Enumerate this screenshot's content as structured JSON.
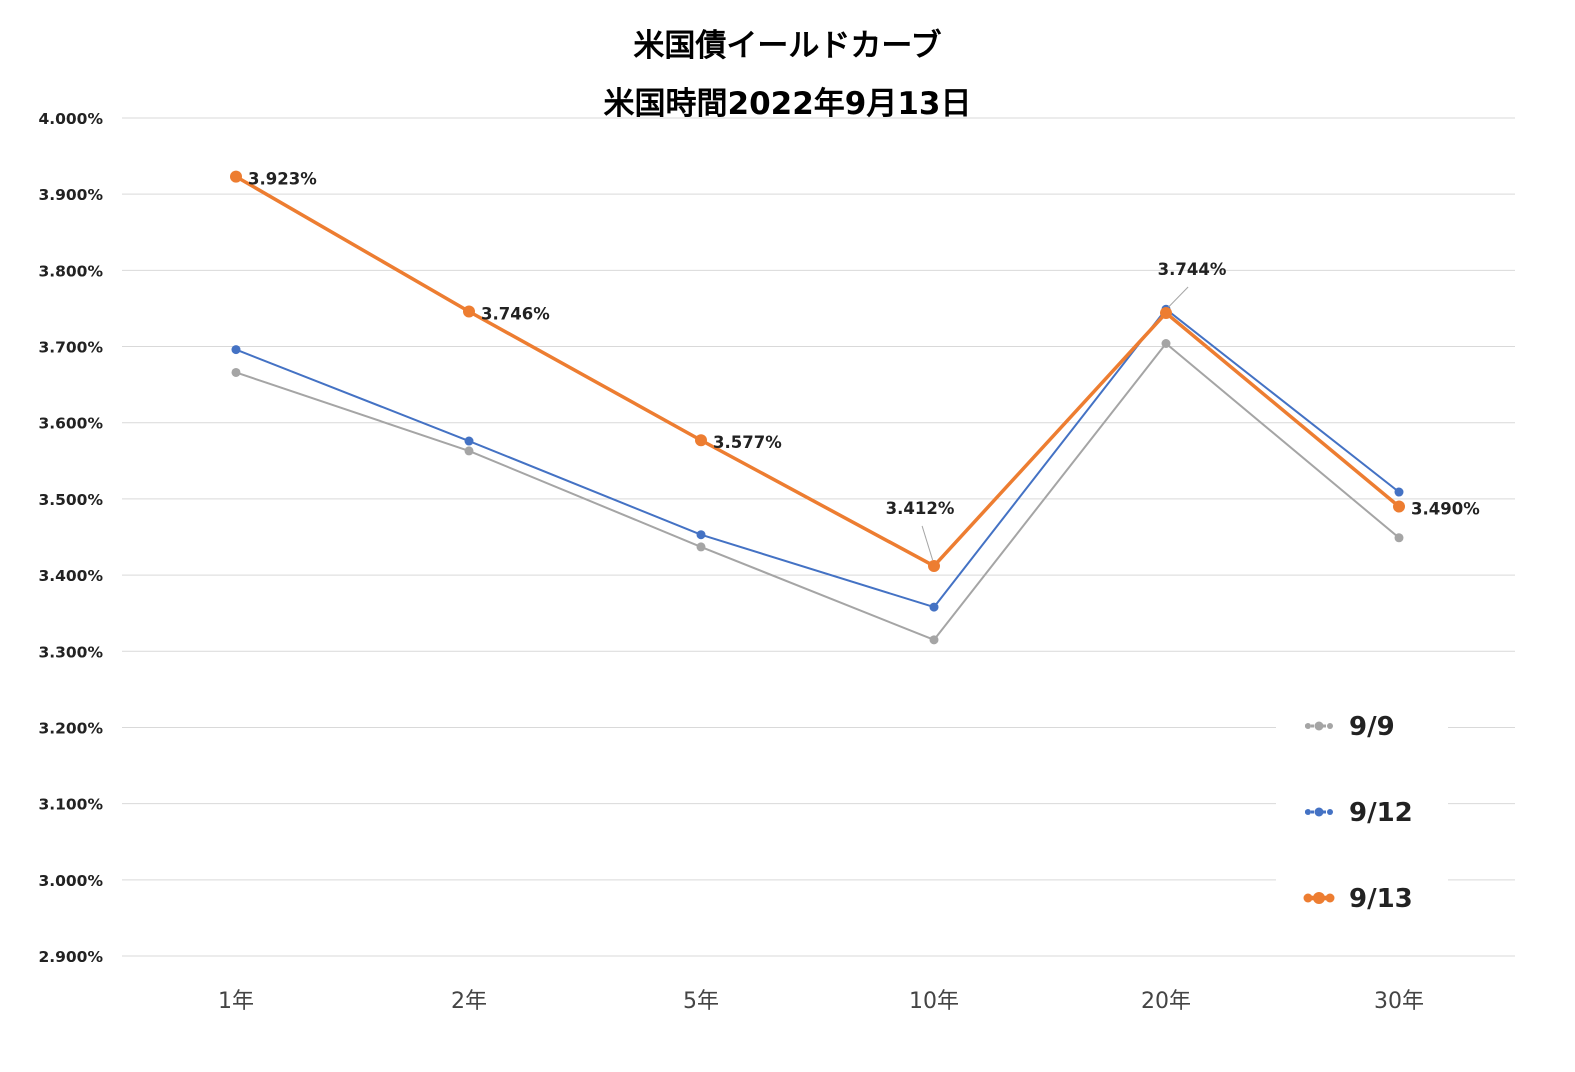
{
  "chart_data": {
    "type": "line",
    "title": "米国債イールドカーブ",
    "subtitle": "米国時間2022年9月13日",
    "categories": [
      "1年",
      "2年",
      "5年",
      "10年",
      "20年",
      "30年"
    ],
    "ylim": [
      2.9,
      4.0
    ],
    "yticks": [
      4.0,
      3.9,
      3.8,
      3.7,
      3.6,
      3.5,
      3.4,
      3.3,
      3.2,
      3.1,
      3.0,
      2.9
    ],
    "ytick_labels": [
      "4.000%",
      "3.900%",
      "3.800%",
      "3.700%",
      "3.600%",
      "3.500%",
      "3.400%",
      "3.300%",
      "3.200%",
      "3.100%",
      "3.000%",
      "2.900%"
    ],
    "grid": true,
    "legend_position": "bottom-right",
    "series": [
      {
        "name": "9/9",
        "color": "#a5a5a5",
        "values": [
          3.666,
          3.563,
          3.437,
          3.315,
          3.704,
          3.449
        ]
      },
      {
        "name": "9/12",
        "color": "#4472c4",
        "values": [
          3.696,
          3.576,
          3.453,
          3.358,
          3.749,
          3.509
        ]
      },
      {
        "name": "9/13",
        "color": "#ed7d31",
        "values": [
          3.923,
          3.746,
          3.577,
          3.412,
          3.744,
          3.49
        ],
        "data_labels": [
          "3.923%",
          "3.746%",
          "3.577%",
          "3.412%",
          "3.744%",
          "3.490%"
        ]
      }
    ]
  }
}
